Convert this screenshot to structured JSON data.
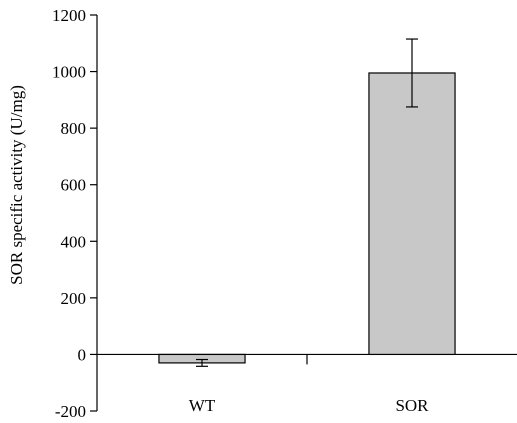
{
  "chart_data": {
    "type": "bar",
    "categories": [
      "WT",
      "SOR"
    ],
    "values": [
      -30,
      995
    ],
    "errors": [
      12,
      120
    ],
    "ylabel": "SOR specific activity (U/mg)",
    "xlabel": "",
    "ylim": [
      -200,
      1200
    ],
    "yticks": [
      1200,
      1000,
      800,
      600,
      400,
      200,
      0,
      -200
    ],
    "grid": false,
    "bar_color": "#c8c8c8",
    "bar_edge_color": "#000000"
  }
}
